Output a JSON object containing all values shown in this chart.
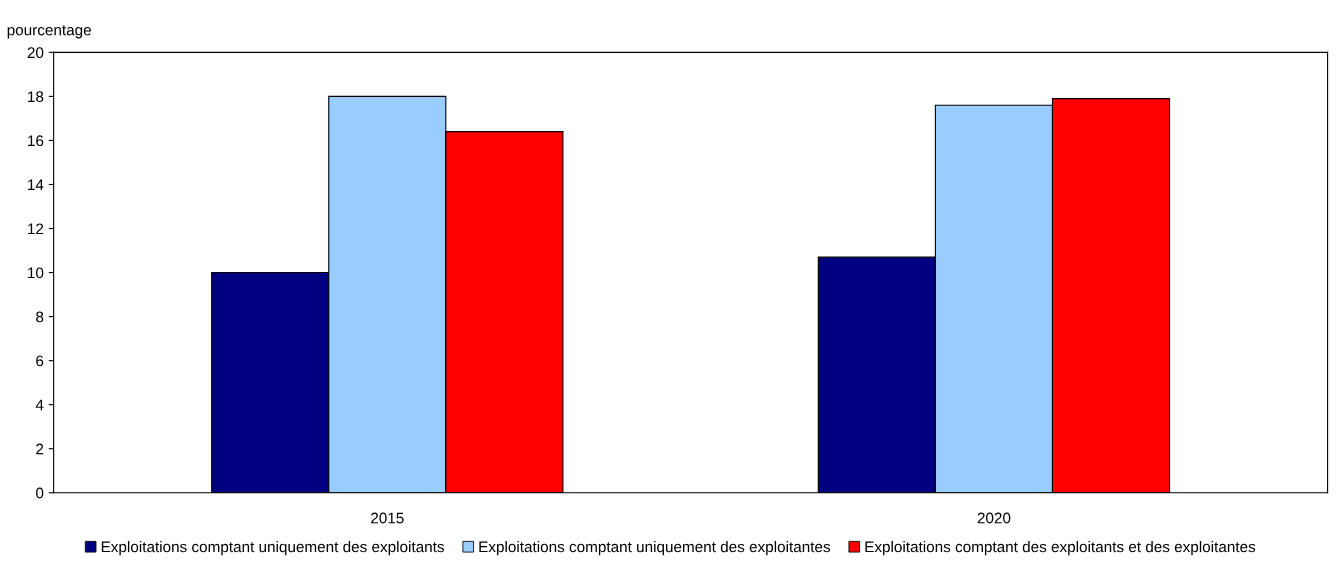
{
  "chart_data": {
    "type": "bar",
    "ylabel": "pourcentage",
    "categories": [
      "2015",
      "2020"
    ],
    "series": [
      {
        "name": "Exploitations comptant uniquement des exploitants",
        "color": "#000080",
        "values": [
          10.0,
          10.7
        ]
      },
      {
        "name": "Exploitations comptant uniquement des exploitantes",
        "color": "#99ccff",
        "values": [
          18.0,
          17.6
        ]
      },
      {
        "name": "Exploitations comptant des exploitants et des exploitantes",
        "color": "#ff0000",
        "values": [
          16.4,
          17.9
        ]
      }
    ],
    "ylim": [
      0,
      20
    ],
    "yticks": [
      0,
      2,
      4,
      6,
      8,
      10,
      12,
      14,
      16,
      18,
      20
    ],
    "grid": false,
    "legend": "bottom"
  }
}
